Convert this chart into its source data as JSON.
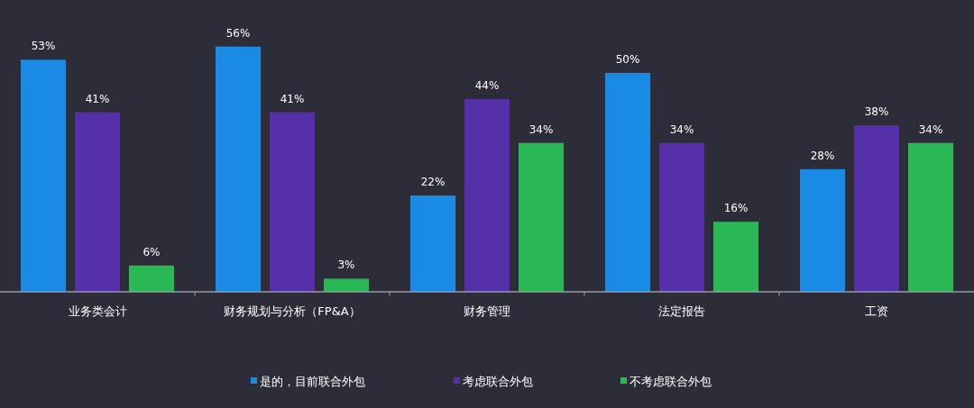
{
  "chart_data": {
    "type": "bar",
    "categories": [
      "业务类会计",
      "财务规划与分析（FP&A）",
      "财务管理",
      "法定报告",
      "工资"
    ],
    "series": [
      {
        "name": "是的，目前联合外包",
        "color": "#1a8be4",
        "values": [
          53,
          56,
          22,
          50,
          28
        ],
        "value_labels": [
          "53%",
          "56%",
          "22%",
          "50%",
          "28%"
        ]
      },
      {
        "name": "考虑联合外包",
        "color": "#5530a8",
        "values": [
          41,
          41,
          44,
          34,
          38
        ],
        "value_labels": [
          "41%",
          "41%",
          "44%",
          "34%",
          "38%"
        ]
      },
      {
        "name": "不考虑联合外包",
        "color": "#2ab857",
        "values": [
          6,
          3,
          34,
          16,
          34
        ],
        "value_labels": [
          "6%",
          "3%",
          "34%",
          "16%",
          "34%"
        ]
      }
    ],
    "relative": false,
    "legend": "bottom"
  }
}
